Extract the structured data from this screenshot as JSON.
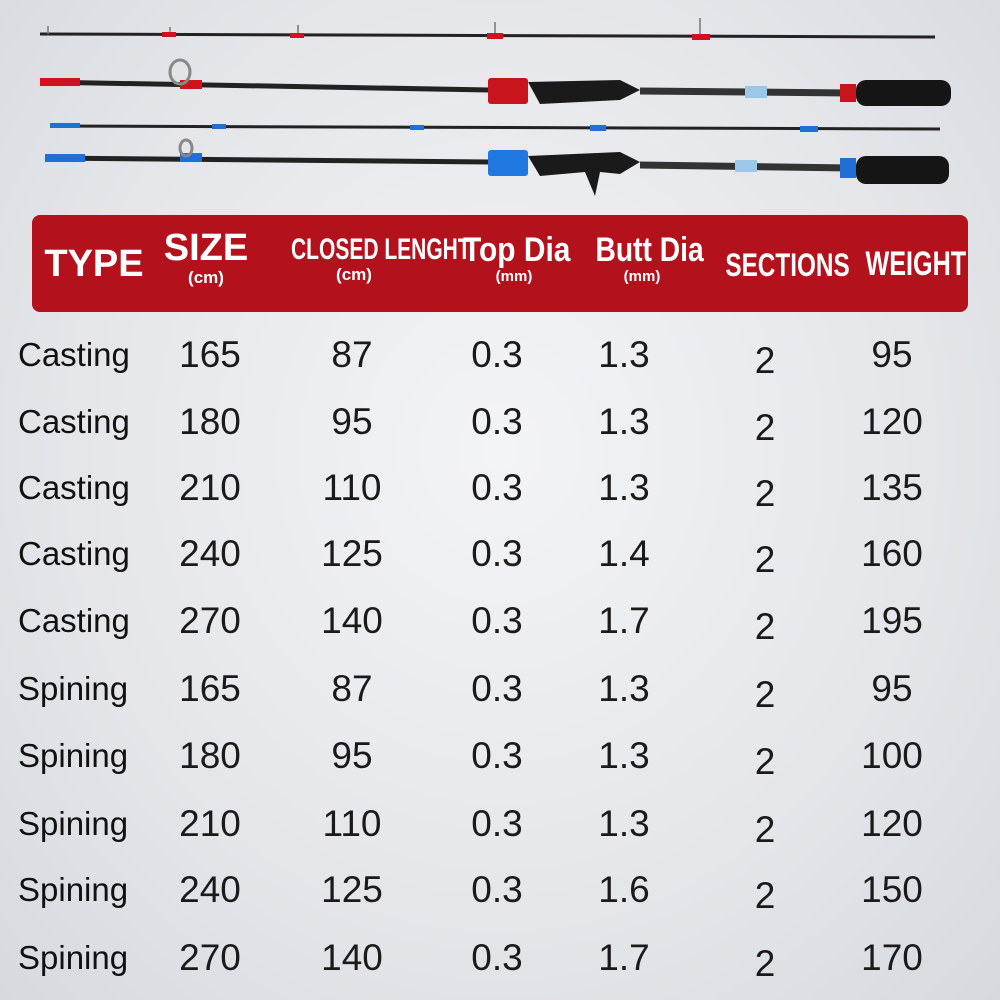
{
  "header": {
    "type": "TYPE",
    "size": "SIZE",
    "size_unit": "(cm)",
    "closed": "CLOSED LENGHT",
    "closed_unit": "(cm)",
    "top": "Top Dia",
    "top_unit": "(mm)",
    "butt": "Butt Dia",
    "butt_unit": "(mm)",
    "sections": "SECTIONS",
    "weight": "WEIGHT"
  },
  "colors": {
    "header_bg": "#b3121c",
    "casting_accent": "#d0121c",
    "spinning_accent": "#1f6fd6"
  },
  "rows": [
    {
      "type": "Casting",
      "size": "165",
      "closed": "87",
      "top": "0.3",
      "butt": "1.3",
      "sections": "2",
      "weight": "95"
    },
    {
      "type": "Casting",
      "size": "180",
      "closed": "95",
      "top": "0.3",
      "butt": "1.3",
      "sections": "2",
      "weight": "120"
    },
    {
      "type": "Casting",
      "size": "210",
      "closed": "110",
      "top": "0.3",
      "butt": "1.3",
      "sections": "2",
      "weight": "135"
    },
    {
      "type": "Casting",
      "size": "240",
      "closed": "125",
      "top": "0.3",
      "butt": "1.4",
      "sections": "2",
      "weight": "160"
    },
    {
      "type": "Casting",
      "size": "270",
      "closed": "140",
      "top": "0.3",
      "butt": "1.7",
      "sections": "2",
      "weight": "195"
    },
    {
      "type": "Spining",
      "size": "165",
      "closed": "87",
      "top": "0.3",
      "butt": "1.3",
      "sections": "2",
      "weight": "95"
    },
    {
      "type": "Spining",
      "size": "180",
      "closed": "95",
      "top": "0.3",
      "butt": "1.3",
      "sections": "2",
      "weight": "100"
    },
    {
      "type": "Spining",
      "size": "210",
      "closed": "110",
      "top": "0.3",
      "butt": "1.3",
      "sections": "2",
      "weight": "120"
    },
    {
      "type": "Spining",
      "size": "240",
      "closed": "125",
      "top": "0.3",
      "butt": "1.6",
      "sections": "2",
      "weight": "150"
    },
    {
      "type": "Spining",
      "size": "270",
      "closed": "140",
      "top": "0.3",
      "butt": "1.7",
      "sections": "2",
      "weight": "170"
    }
  ]
}
